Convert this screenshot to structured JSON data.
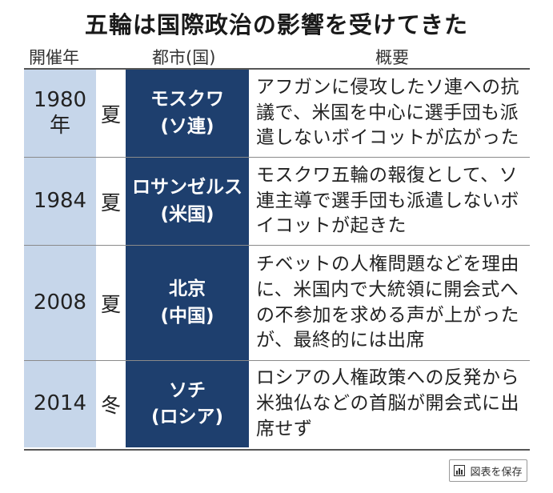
{
  "title": "五輪は国際政治の影響を受けてきた",
  "headers": {
    "year": "開催年",
    "city": "都市(国)",
    "summary": "概要"
  },
  "rows": [
    {
      "year": "1980",
      "year_suffix": "年",
      "season": "夏",
      "city": "モスクワ",
      "country": "(ソ連)",
      "summary": "アフガンに侵攻したソ連への抗議で、米国を中心に選手団も派遣しないボイコットが広がった"
    },
    {
      "year": "1984",
      "year_suffix": "",
      "season": "夏",
      "city": "ロサンゼルス",
      "country": "(米国)",
      "summary": "モスクワ五輪の報復として、ソ連主導で選手団も派遣しないボイコットが起きた"
    },
    {
      "year": "2008",
      "year_suffix": "",
      "season": "夏",
      "city": "北京",
      "country": "(中国)",
      "summary": "チベットの人権問題などを理由に、米国内で大統領に開会式への不参加を求める声が上がったが、最終的には出席"
    },
    {
      "year": "2014",
      "year_suffix": "",
      "season": "冬",
      "city": "ソチ",
      "country": "(ロシア)",
      "summary": "ロシアの人権政策への反発から米独仏などの首脳が開会式に出席せず"
    }
  ],
  "save_button": {
    "label": "図表を保存",
    "icon": "bar-chart-icon"
  },
  "colors": {
    "year_bg": "#c6d6ea",
    "city_bg": "#1e3f6e",
    "city_text": "#ffffff"
  }
}
